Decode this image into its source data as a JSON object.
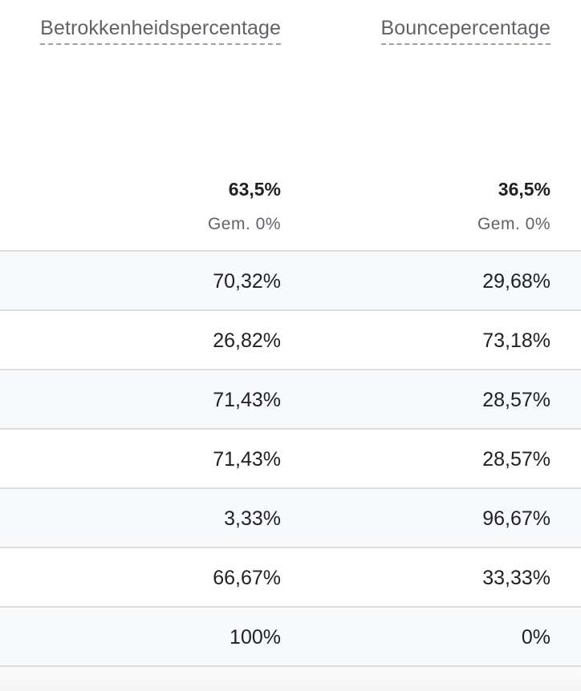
{
  "columns": [
    {
      "title": "Betrokkenheidspercentage",
      "total": "63,5%",
      "average": "Gem. 0%"
    },
    {
      "title": "Bouncepercentage",
      "total": "36,5%",
      "average": "Gem. 0%"
    }
  ],
  "rows": [
    [
      "70,32%",
      "29,68%"
    ],
    [
      "26,82%",
      "73,18%"
    ],
    [
      "71,43%",
      "28,57%"
    ],
    [
      "71,43%",
      "28,57%"
    ],
    [
      "3,33%",
      "96,67%"
    ],
    [
      "66,67%",
      "33,33%"
    ],
    [
      "100%",
      "0%"
    ]
  ],
  "colors": {
    "stripe": "#f8f9fa",
    "border": "#dadce0",
    "header_text": "#5f6368",
    "text": "#202124"
  }
}
